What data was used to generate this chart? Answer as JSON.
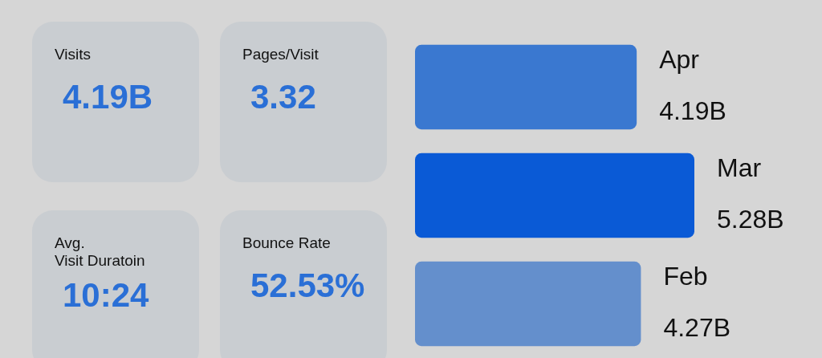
{
  "chart_data": [
    {
      "type": "other",
      "annotations": [
        "Visits",
        "4.19B",
        "Pages/Visit",
        "3.32",
        "Avg.\nVisit Duratoin",
        "10:24",
        "Bounce Rate",
        "52.53%"
      ]
    },
    {
      "type": "bar",
      "orientation": "horizontal",
      "categories": [
        "Apr",
        "Mar",
        "Feb"
      ],
      "values": [
        4.19,
        5.28,
        4.27
      ],
      "colors": [
        "#3a78d0",
        "#0a5ad6",
        "#648fcc"
      ],
      "value_labels": [
        "4.19B",
        "5.28B",
        "4.27B"
      ]
    }
  ]
}
